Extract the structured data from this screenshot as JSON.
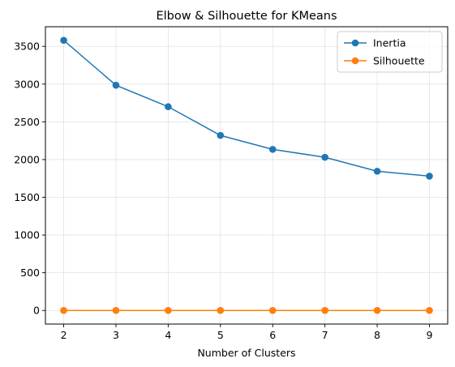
{
  "chart_data": {
    "type": "line",
    "title": "Elbow & Silhouette for KMeans",
    "xlabel": "Number of Clusters",
    "ylabel": "",
    "x": [
      2,
      3,
      4,
      5,
      6,
      7,
      8,
      9
    ],
    "xticks": [
      "2",
      "3",
      "4",
      "5",
      "6",
      "7",
      "8",
      "9"
    ],
    "xlim": [
      1.65,
      9.35
    ],
    "ylim": [
      -180,
      3760
    ],
    "yticks": [
      0,
      500,
      1000,
      1500,
      2000,
      2500,
      3000,
      3500
    ],
    "ytick_labels": [
      "0",
      "500",
      "1000",
      "1500",
      "2000",
      "2500",
      "3000",
      "3500"
    ],
    "grid": true,
    "legend_position": "top-right",
    "series": [
      {
        "name": "Inertia",
        "color": "#1f77b4",
        "marker": "circle",
        "values": [
          3580,
          2985,
          2700,
          2320,
          2135,
          2030,
          1845,
          1780
        ]
      },
      {
        "name": "Silhouette",
        "color": "#ff7f0e",
        "marker": "circle",
        "values": [
          0.3,
          0.3,
          0.3,
          0.3,
          0.3,
          0.3,
          0.3,
          0.3
        ]
      }
    ]
  }
}
